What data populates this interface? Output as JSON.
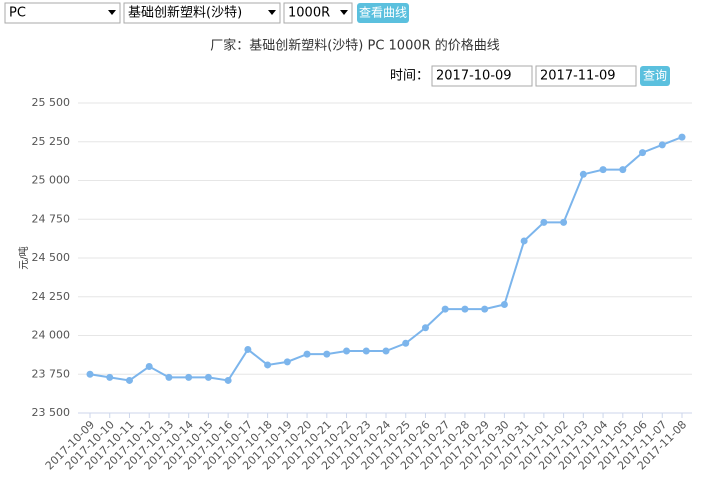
{
  "controls": {
    "product": "PC",
    "maker": "基础创新塑料(沙特)",
    "grade": "1000R",
    "view_button": "查看曲线",
    "time_label": "时间：",
    "start_date": "2017-10-09",
    "end_date": "2017-11-09",
    "query_button": "查询"
  },
  "chart_data": {
    "type": "line",
    "title": "厂家：基础创新塑料(沙特)  PC  1000R  的价格曲线",
    "y_label": "元/吨",
    "categories": [
      "2017-10-09",
      "2017-10-10",
      "2017-10-11",
      "2017-10-12",
      "2017-10-13",
      "2017-10-14",
      "2017-10-15",
      "2017-10-16",
      "2017-10-17",
      "2017-10-18",
      "2017-10-19",
      "2017-10-20",
      "2017-10-21",
      "2017-10-22",
      "2017-10-23",
      "2017-10-24",
      "2017-10-25",
      "2017-10-26",
      "2017-10-27",
      "2017-10-28",
      "2017-10-29",
      "2017-10-30",
      "2017-10-31",
      "2017-11-01",
      "2017-11-02",
      "2017-11-03",
      "2017-11-04",
      "2017-11-05",
      "2017-11-06",
      "2017-11-07",
      "2017-11-08"
    ],
    "values": [
      23750,
      23730,
      23710,
      23800,
      23730,
      23730,
      23730,
      23710,
      23910,
      23810,
      23830,
      23880,
      23880,
      23900,
      23900,
      23900,
      23950,
      24050,
      24170,
      24170,
      24170,
      24200,
      24610,
      24730,
      24730,
      25040,
      25070,
      25070,
      25180,
      25230,
      25280
    ],
    "color": "#7cb5ec",
    "ylim": [
      23500,
      25500
    ],
    "yticks": [
      {
        "value": 23500,
        "label": "23 500"
      },
      {
        "value": 23750,
        "label": "23 750"
      },
      {
        "value": 24000,
        "label": "24 000"
      },
      {
        "value": 24250,
        "label": "24 250"
      },
      {
        "value": 24500,
        "label": "24 500"
      },
      {
        "value": 24750,
        "label": "24 750"
      },
      {
        "value": 25000,
        "label": "25 000"
      },
      {
        "value": 25250,
        "label": "25 250"
      },
      {
        "value": 25500,
        "label": "25 500"
      }
    ],
    "grid": true
  }
}
